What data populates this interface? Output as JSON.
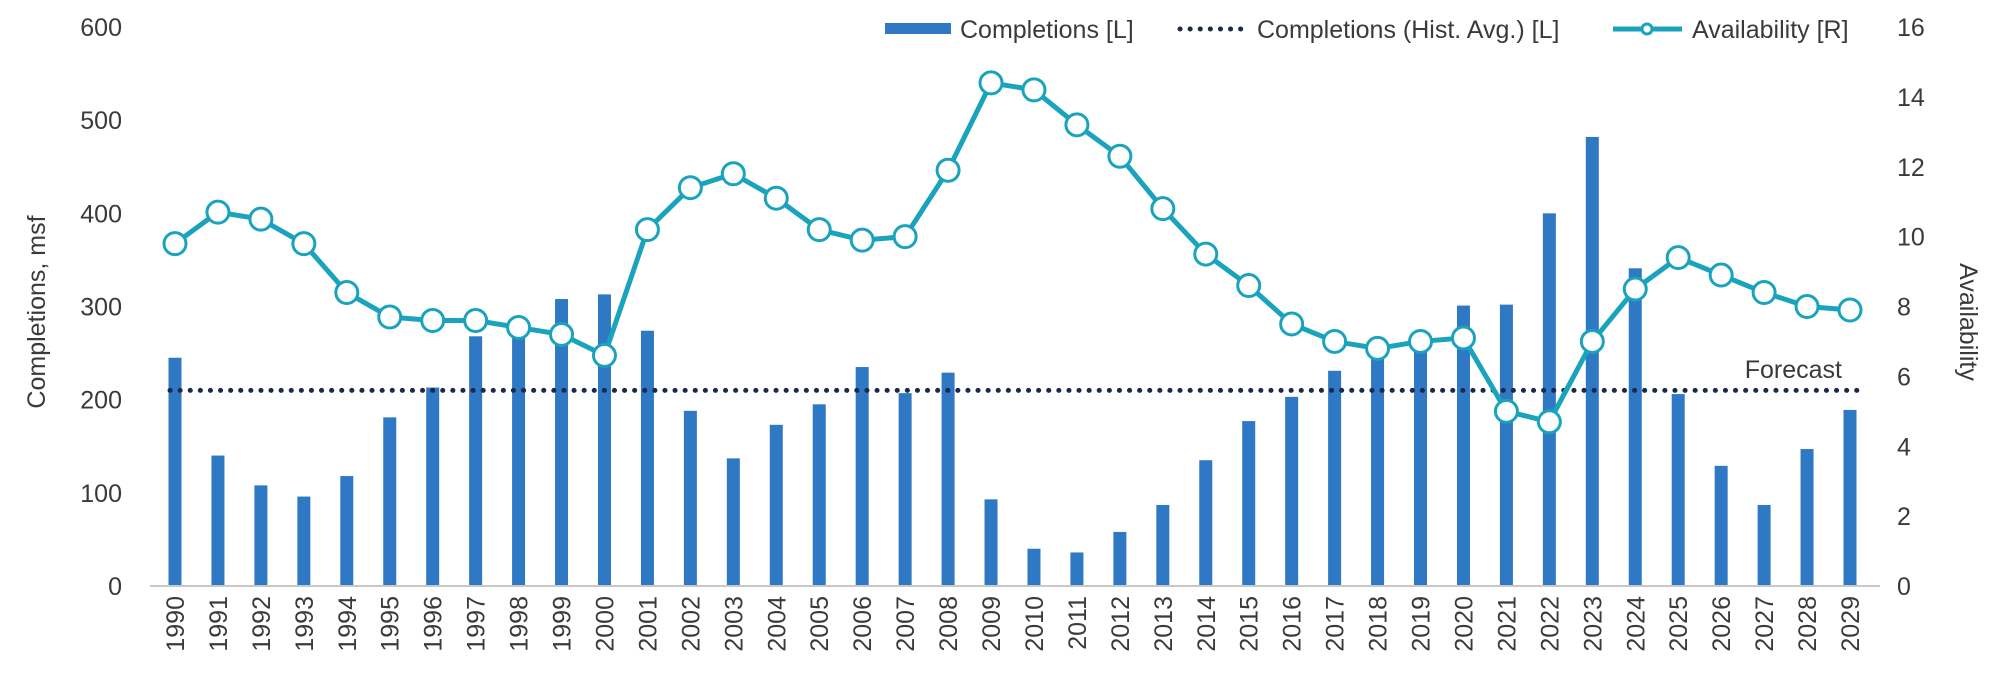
{
  "chart_data": {
    "type": "bar",
    "categories": [
      "1990",
      "1991",
      "1992",
      "1993",
      "1994",
      "1995",
      "1996",
      "1997",
      "1998",
      "1999",
      "2000",
      "2001",
      "2002",
      "2003",
      "2004",
      "2005",
      "2006",
      "2007",
      "2008",
      "2009",
      "2010",
      "2011",
      "2012",
      "2013",
      "2014",
      "2015",
      "2016",
      "2017",
      "2018",
      "2019",
      "2020",
      "2021",
      "2022",
      "2023",
      "2024",
      "2025",
      "2026",
      "2027",
      "2028",
      "2029"
    ],
    "series": [
      {
        "name": "Completions [L]",
        "kind": "bar",
        "axis": "left",
        "color": "#2f78c4",
        "values": [
          245,
          140,
          108,
          96,
          118,
          181,
          213,
          268,
          280,
          308,
          313,
          274,
          188,
          137,
          173,
          195,
          235,
          207,
          229,
          93,
          40,
          36,
          58,
          87,
          135,
          177,
          203,
          231,
          250,
          255,
          301,
          302,
          400,
          482,
          341,
          206,
          129,
          87,
          147,
          189
        ]
      },
      {
        "name": "Completions (Hist. Avg.) [L]",
        "kind": "line",
        "style": "dotted",
        "axis": "left",
        "color": "#1b2a4a",
        "values": [
          210,
          210,
          210,
          210,
          210,
          210,
          210,
          210,
          210,
          210,
          210,
          210,
          210,
          210,
          210,
          210,
          210,
          210,
          210,
          210,
          210,
          210,
          210,
          210,
          210,
          210,
          210,
          210,
          210,
          210,
          210,
          210,
          210,
          210,
          210,
          210,
          210,
          210,
          210,
          210
        ]
      },
      {
        "name": "Availability [R]",
        "kind": "line",
        "style": "markers",
        "axis": "right",
        "color": "#1aa3bc",
        "values": [
          9.8,
          10.7,
          10.5,
          9.8,
          8.4,
          7.7,
          7.6,
          7.6,
          7.4,
          7.2,
          6.6,
          10.2,
          11.4,
          11.8,
          11.1,
          10.2,
          9.9,
          10.0,
          11.9,
          14.4,
          14.2,
          13.2,
          12.3,
          10.8,
          9.5,
          8.6,
          7.5,
          7.0,
          6.8,
          7.0,
          7.1,
          5.0,
          4.7,
          7.0,
          8.5,
          9.4,
          8.9,
          8.4,
          8.0,
          7.9
        ]
      }
    ],
    "left_axis": {
      "label": "Completions, msf",
      "range": [
        0,
        600
      ],
      "ticks": [
        0,
        100,
        200,
        300,
        400,
        500,
        600
      ]
    },
    "right_axis": {
      "label": "Availability",
      "range": [
        0,
        16
      ],
      "ticks": [
        0,
        2,
        4,
        6,
        8,
        10,
        12,
        14,
        16
      ]
    },
    "annotations": [
      {
        "text": "Forecast"
      }
    ],
    "legend_position": "top-right",
    "grid": false
  }
}
